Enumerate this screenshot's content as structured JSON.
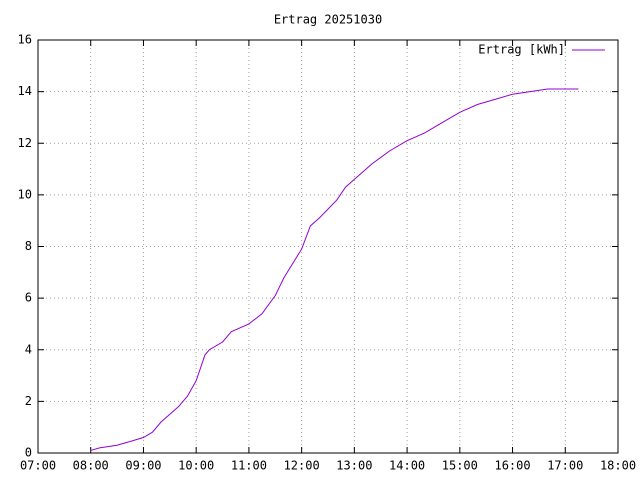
{
  "chart_data": {
    "type": "line",
    "title": "Ertrag 20251030",
    "x": [
      "08:00",
      "08:10",
      "08:30",
      "08:50",
      "09:00",
      "09:10",
      "09:20",
      "09:30",
      "09:40",
      "09:50",
      "10:00",
      "10:10",
      "10:15",
      "10:30",
      "10:40",
      "11:00",
      "11:15",
      "11:30",
      "11:40",
      "12:00",
      "12:10",
      "12:20",
      "12:40",
      "12:50",
      "13:00",
      "13:20",
      "13:40",
      "14:00",
      "14:20",
      "14:40",
      "15:00",
      "15:20",
      "15:40",
      "16:00",
      "16:20",
      "16:40",
      "17:15"
    ],
    "series": [
      {
        "name": "Ertrag [kWh]",
        "color": "#9400d3",
        "values": [
          0.1,
          0.2,
          0.3,
          0.5,
          0.6,
          0.8,
          1.2,
          1.5,
          1.8,
          2.2,
          2.8,
          3.8,
          4.0,
          4.3,
          4.7,
          5.0,
          5.4,
          6.1,
          6.8,
          7.9,
          8.8,
          9.1,
          9.8,
          10.3,
          10.6,
          11.2,
          11.7,
          12.1,
          12.4,
          12.8,
          13.2,
          13.5,
          13.7,
          13.9,
          14.0,
          14.1,
          14.1
        ]
      }
    ],
    "xlim": [
      "07:00",
      "18:00"
    ],
    "xticks": [
      "07:00",
      "08:00",
      "09:00",
      "10:00",
      "11:00",
      "12:00",
      "13:00",
      "14:00",
      "15:00",
      "16:00",
      "17:00",
      "18:00"
    ],
    "ylim": [
      0,
      16
    ],
    "yticks": [
      0,
      2,
      4,
      6,
      8,
      10,
      12,
      14,
      16
    ],
    "grid": true,
    "legend": "top-right"
  }
}
